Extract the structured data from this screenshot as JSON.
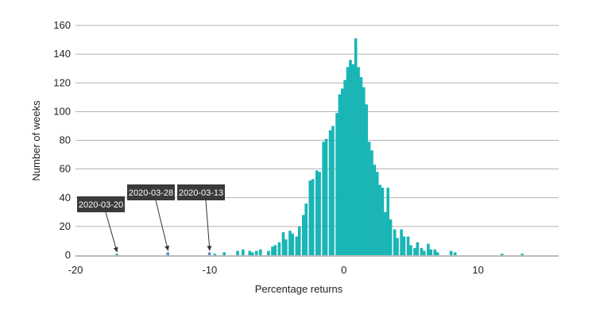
{
  "chart_data": {
    "type": "bar",
    "title": "",
    "xlabel": "Percentage returns",
    "ylabel": "Number of weeks",
    "xlim": [
      -20,
      16
    ],
    "ylim": [
      0,
      160
    ],
    "x_ticks": [
      -20,
      -10,
      0,
      10
    ],
    "y_ticks": [
      0,
      20,
      40,
      60,
      80,
      100,
      120,
      140,
      160
    ],
    "grid": "horizontal",
    "bar_color": "#1ab5b5",
    "highlight_color": "#6a8fbf",
    "annotation_bg": "#3a3a3a",
    "bin_width": 0.25,
    "bins": [
      [
        -16.9,
        1
      ],
      [
        -13.1,
        2
      ],
      [
        -10.0,
        2
      ],
      [
        -9.6,
        1
      ],
      [
        -8.9,
        2
      ],
      [
        -7.9,
        3
      ],
      [
        -7.5,
        4
      ],
      [
        -7.0,
        3
      ],
      [
        -6.8,
        2
      ],
      [
        -6.5,
        3
      ],
      [
        -6.2,
        4
      ],
      [
        -5.6,
        3
      ],
      [
        -5.3,
        6
      ],
      [
        -5.1,
        7
      ],
      [
        -4.8,
        9
      ],
      [
        -4.5,
        16
      ],
      [
        -4.3,
        11
      ],
      [
        -4.0,
        17
      ],
      [
        -3.8,
        15
      ],
      [
        -3.5,
        13
      ],
      [
        -3.3,
        20
      ],
      [
        -3.0,
        28
      ],
      [
        -2.8,
        36
      ],
      [
        -2.5,
        52
      ],
      [
        -2.3,
        53
      ],
      [
        -2.0,
        59
      ],
      [
        -1.8,
        58
      ],
      [
        -1.5,
        79
      ],
      [
        -1.3,
        81
      ],
      [
        -1.0,
        87
      ],
      [
        -0.8,
        90
      ],
      [
        -0.5,
        99
      ],
      [
        -0.3,
        112
      ],
      [
        -0.1,
        116
      ],
      [
        0.1,
        122
      ],
      [
        0.3,
        131
      ],
      [
        0.5,
        136
      ],
      [
        0.7,
        133
      ],
      [
        0.9,
        151
      ],
      [
        1.1,
        131
      ],
      [
        1.3,
        124
      ],
      [
        1.5,
        117
      ],
      [
        1.7,
        105
      ],
      [
        1.9,
        79
      ],
      [
        2.1,
        73
      ],
      [
        2.3,
        63
      ],
      [
        2.5,
        58
      ],
      [
        2.7,
        49
      ],
      [
        2.9,
        47
      ],
      [
        3.1,
        30
      ],
      [
        3.3,
        47
      ],
      [
        3.5,
        25
      ],
      [
        3.8,
        18
      ],
      [
        4.0,
        12
      ],
      [
        4.3,
        18
      ],
      [
        4.5,
        13
      ],
      [
        4.8,
        13
      ],
      [
        5.0,
        7
      ],
      [
        5.3,
        5
      ],
      [
        5.5,
        9
      ],
      [
        5.8,
        5
      ],
      [
        6.0,
        3
      ],
      [
        6.3,
        8
      ],
      [
        6.5,
        4
      ],
      [
        6.8,
        4
      ],
      [
        7.0,
        2
      ],
      [
        8.0,
        3
      ],
      [
        8.3,
        2
      ],
      [
        11.8,
        1
      ],
      [
        13.3,
        1
      ]
    ],
    "highlighted_x": [
      -13.1,
      -10.0
    ],
    "annotations": [
      {
        "text": "2020-03-20",
        "x": -16.9,
        "y": 1
      },
      {
        "text": "2020-03-28",
        "x": -13.1,
        "y": 2
      },
      {
        "text": "2020-03-13",
        "x": -10.0,
        "y": 2
      }
    ]
  }
}
